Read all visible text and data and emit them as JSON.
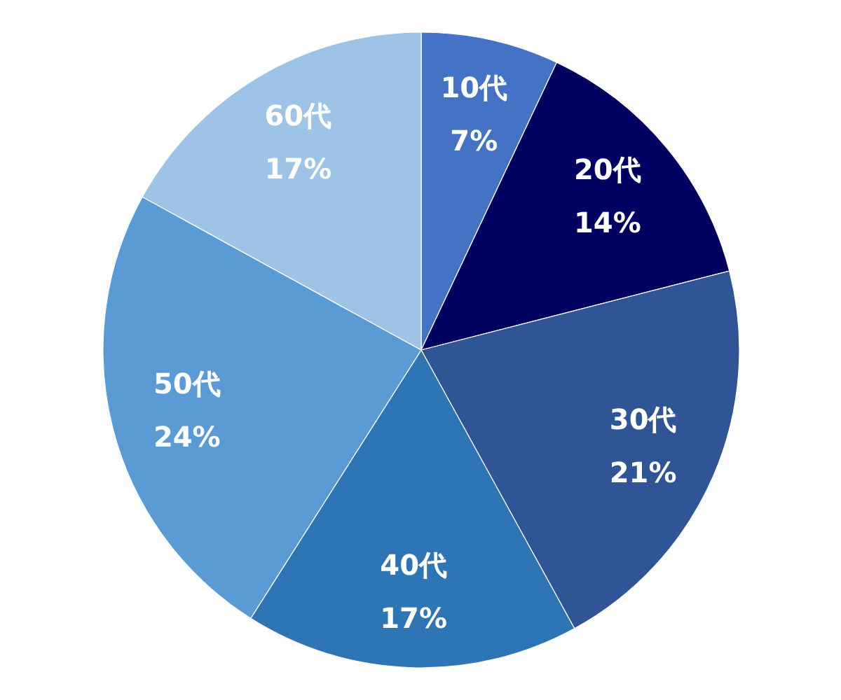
{
  "chart_data": {
    "type": "pie",
    "categories": [
      "10代",
      "20代",
      "30代",
      "40代",
      "50代",
      "60代"
    ],
    "values": [
      7,
      14,
      21,
      17,
      24,
      17
    ],
    "colors": [
      "#4472c4",
      "#000060",
      "#2f5597",
      "#2e75b6",
      "#5b9bd5",
      "#9dc3e6"
    ],
    "value_labels": [
      "7%",
      "14%",
      "21%",
      "17%",
      "24%",
      "17%"
    ]
  }
}
